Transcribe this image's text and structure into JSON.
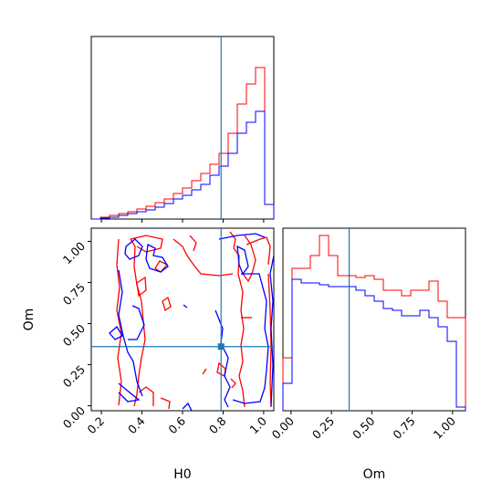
{
  "chart_data": {
    "type": "corner",
    "parameters": [
      "H0",
      "Om"
    ],
    "truths": {
      "H0": 0.79,
      "Om": 0.36
    },
    "colors": {
      "series_a": "#ff0000",
      "series_b": "#0000ff",
      "truth": "#1f77b4"
    },
    "x_ticks_H0": [
      "0.2",
      "0.4",
      "0.6",
      "0.8",
      "1.0"
    ],
    "y_ticks_Om": [
      "0.00",
      "0.25",
      "0.50",
      "0.75",
      "1.00"
    ],
    "x_ticks_Om": [
      "0.00",
      "0.25",
      "0.50",
      "0.75",
      "1.00"
    ],
    "x_labels": {
      "H0": "H0",
      "Om": "Om"
    },
    "y_labels": {
      "Om": "Om"
    },
    "hist_H0": {
      "range": [
        0.15,
        1.05
      ],
      "bins": 20,
      "red": [
        0.0,
        0.01,
        0.02,
        0.03,
        0.04,
        0.055,
        0.07,
        0.09,
        0.11,
        0.14,
        0.17,
        0.21,
        0.25,
        0.3,
        0.36,
        0.47,
        0.63,
        0.74,
        0.83,
        0.08
      ],
      "blue": [
        0.0,
        0.005,
        0.01,
        0.02,
        0.03,
        0.04,
        0.05,
        0.065,
        0.085,
        0.11,
        0.13,
        0.16,
        0.19,
        0.24,
        0.29,
        0.36,
        0.47,
        0.53,
        0.59,
        0.08
      ]
    },
    "hist_Om": {
      "range": [
        -0.05,
        1.08
      ],
      "bins": 20,
      "red": [
        0.29,
        0.78,
        0.78,
        0.85,
        0.96,
        0.85,
        0.74,
        0.74,
        0.73,
        0.74,
        0.72,
        0.66,
        0.66,
        0.63,
        0.66,
        0.66,
        0.71,
        0.6,
        0.51,
        0.51
      ],
      "blue": [
        0.15,
        0.72,
        0.7,
        0.7,
        0.69,
        0.68,
        0.68,
        0.68,
        0.66,
        0.63,
        0.6,
        0.56,
        0.55,
        0.52,
        0.52,
        0.55,
        0.51,
        0.46,
        0.38,
        0.02
      ]
    }
  }
}
